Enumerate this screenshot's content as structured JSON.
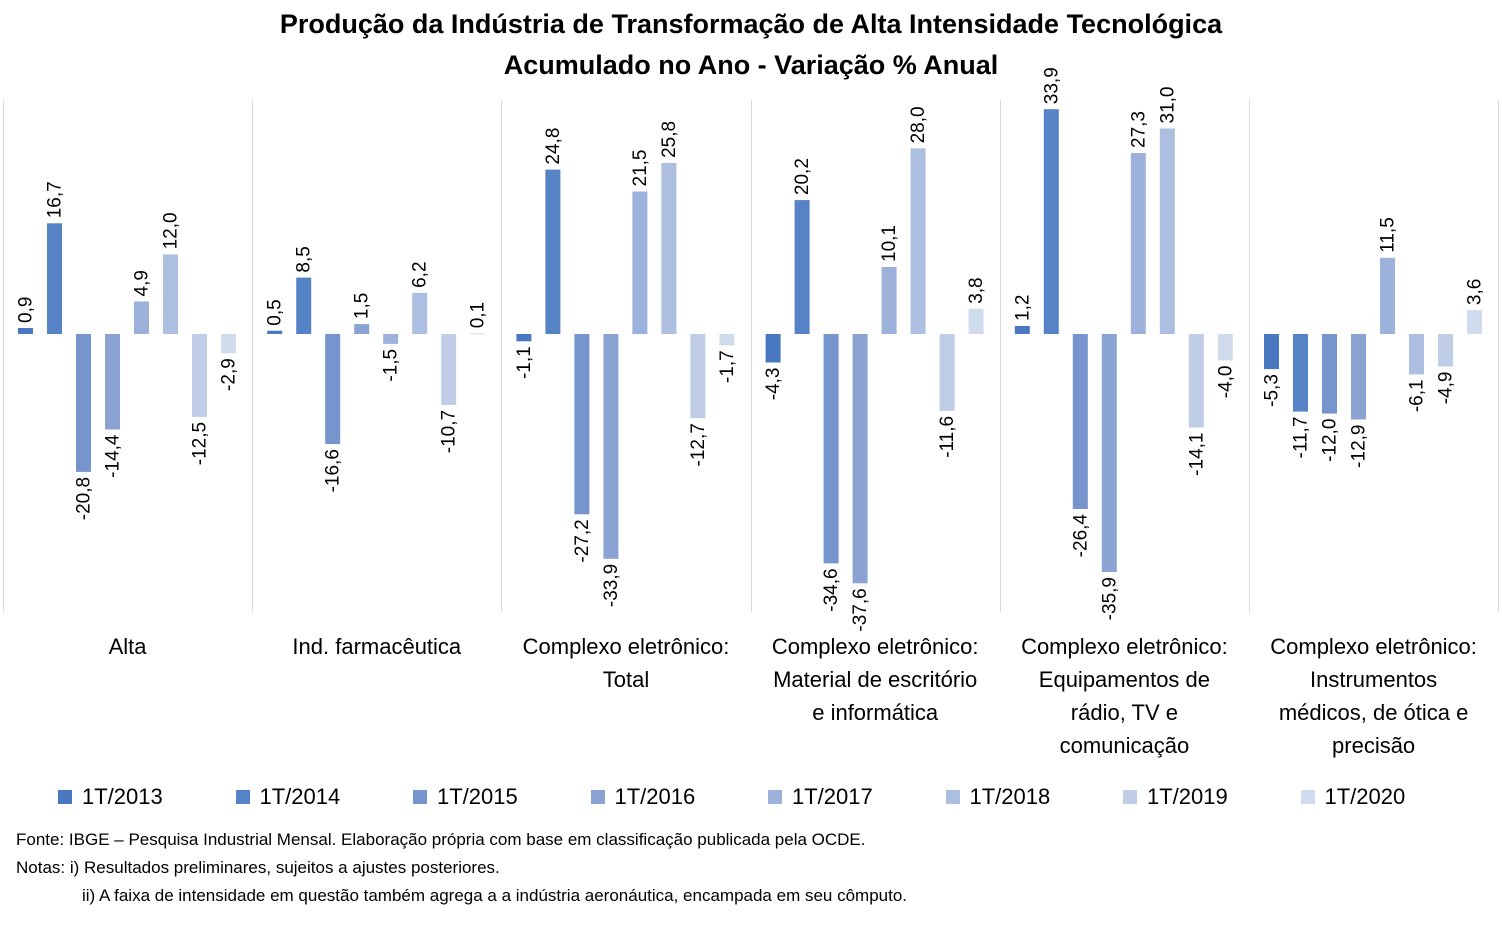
{
  "chart_data": {
    "type": "bar",
    "title": "Produção da Indústria de Transformação de Alta Intensidade Tecnológica",
    "subtitle": "Acumulado no Ano - Variação % Anual",
    "categories": [
      [
        "Alta"
      ],
      [
        "Ind. farmacêutica"
      ],
      [
        "Complexo eletrônico:",
        "Total"
      ],
      [
        "Complexo eletrônico:",
        "Material de escritório",
        "e informática"
      ],
      [
        "Complexo eletrônico:",
        "Equipamentos de",
        "rádio, TV e",
        "comunicação"
      ],
      [
        "Complexo eletrônico:",
        "Instrumentos",
        "médicos, de ótica e",
        "precisão"
      ]
    ],
    "series": [
      {
        "name": "1T/2013",
        "color": "#4a78c0",
        "values": [
          0.9,
          0.5,
          -1.1,
          -4.3,
          1.2,
          -5.3
        ],
        "labels": [
          "0,9",
          "0,5",
          "-1,1",
          "-4,3",
          "1,2",
          "-5,3"
        ]
      },
      {
        "name": "1T/2014",
        "color": "#5683c5",
        "values": [
          16.7,
          8.5,
          24.8,
          20.2,
          33.9,
          -11.7
        ],
        "labels": [
          "16,7",
          "8,5",
          "24,8",
          "20,2",
          "33,9",
          "-11,7"
        ]
      },
      {
        "name": "1T/2015",
        "color": "#7795cd",
        "values": [
          -20.8,
          -16.6,
          -27.2,
          -34.6,
          -26.4,
          -12.0
        ],
        "labels": [
          "-20,8",
          "-16,6",
          "-27,2",
          "-34,6",
          "-26,4",
          "-12,0"
        ]
      },
      {
        "name": "1T/2016",
        "color": "#8aa3d3",
        "values": [
          -14.4,
          1.5,
          -33.9,
          -37.6,
          -35.9,
          -12.9
        ],
        "labels": [
          "-14,4",
          "1,5",
          "-33,9",
          "-37,6",
          "-35,9",
          "-12,9"
        ]
      },
      {
        "name": "1T/2017",
        "color": "#9db2da",
        "values": [
          4.9,
          -1.5,
          21.5,
          10.1,
          27.3,
          11.5
        ],
        "labels": [
          "4,9",
          "-1,5",
          "21,5",
          "10,1",
          "27,3",
          "11,5"
        ]
      },
      {
        "name": "1T/2018",
        "color": "#adbfe0",
        "values": [
          12.0,
          6.2,
          25.8,
          28.0,
          31.0,
          -6.1
        ],
        "labels": [
          "12,0",
          "6,2",
          "25,8",
          "28,0",
          "31,0",
          "-6,1"
        ]
      },
      {
        "name": "1T/2019",
        "color": "#c0cde6",
        "values": [
          -12.5,
          -10.7,
          -12.7,
          -11.6,
          -14.1,
          -4.9
        ],
        "labels": [
          "-12,5",
          "-10,7",
          "-12,7",
          "-11,6",
          "-14,1",
          "-4,9"
        ]
      },
      {
        "name": "1T/2020",
        "color": "#d0dbee",
        "values": [
          -2.9,
          0.1,
          -1.7,
          3.8,
          -4.0,
          3.6
        ],
        "labels": [
          "-2,9",
          "0,1",
          "-1,7",
          "3,8",
          "-4,0",
          "3,6"
        ]
      }
    ],
    "ylim": [
      -40,
      34
    ],
    "grid": false,
    "legend_position": "bottom"
  },
  "notes": {
    "source": "Fonte: IBGE – Pesquisa Industrial Mensal. Elaboração própria com base em classificação publicada pela OCDE.",
    "note1": "Notas: i) Resultados preliminares, sujeitos a ajustes posteriores.",
    "note2": "ii) A faixa de intensidade em questão também agrega a a indústria aeronáutica, encampada em seu cômputo."
  }
}
